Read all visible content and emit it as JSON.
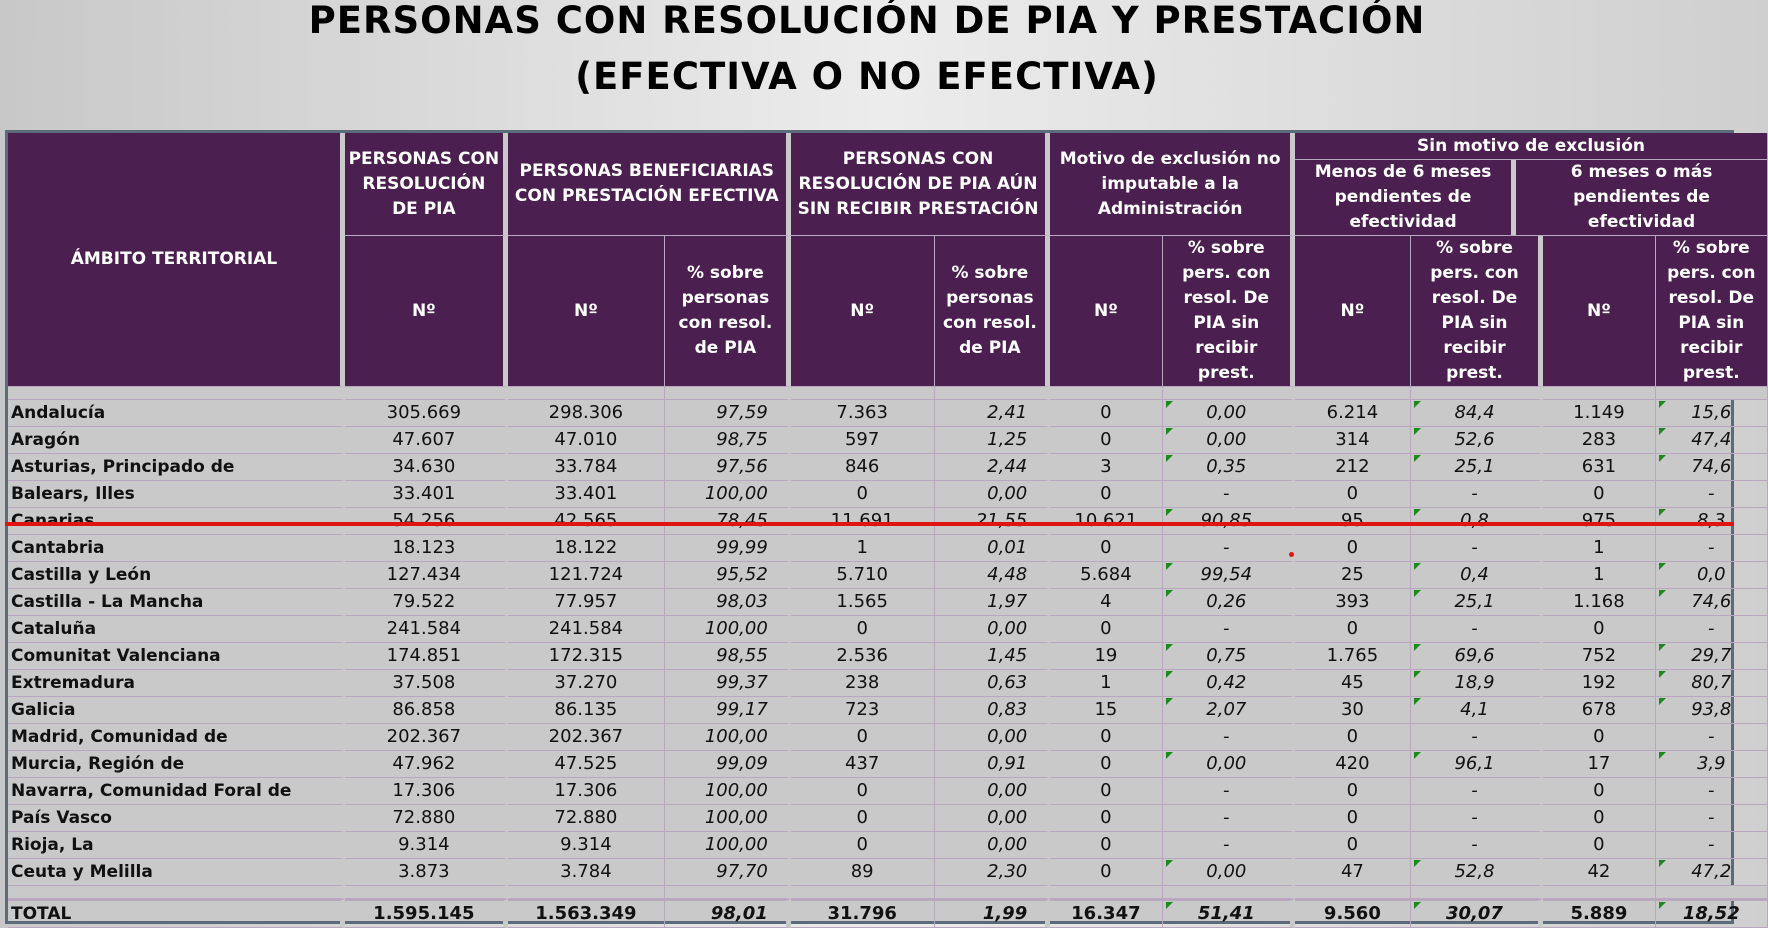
{
  "title": {
    "line1": "PERSONAS CON RESOLUCIÓN DE PIA Y PRESTACIÓN",
    "line2": "(EFECTIVA O NO EFECTIVA)"
  },
  "headers": {
    "ambito": "ÁMBITO TERRITORIAL",
    "personas_pia": "PERSONAS CON RESOLUCIÓN DE PIA",
    "beneficiarias": "PERSONAS BENEFICIARIAS CON PRESTACIÓN EFECTIVA",
    "sin_recibir": "PERSONAS CON RESOLUCIÓN DE PIA AÚN SIN RECIBIR PRESTACIÓN",
    "motivo_exclusion": "Motivo de exclusión no imputable a la Administración",
    "sin_motivo": "Sin motivo de exclusión",
    "menos6": "Menos de 6 meses pendientes de efectividad",
    "mas6": "6 meses o más pendientes de efectividad",
    "num": "Nº",
    "pct_personas": "% sobre personas con resol. de PIA",
    "pct_sin_recibir": "% sobre pers. con resol. De PIA sin recibir prest."
  },
  "rows": [
    {
      "name": "Andalucía",
      "pia": "305.669",
      "ben": "298.306",
      "ben_pct": "97,59",
      "sr": "7.363",
      "sr_pct": "2,41",
      "me": "0",
      "me_pct": "0,00",
      "m6": "6.214",
      "m6_pct": "84,4",
      "p6": "1.149",
      "p6_pct": "15,6"
    },
    {
      "name": "Aragón",
      "pia": "47.607",
      "ben": "47.010",
      "ben_pct": "98,75",
      "sr": "597",
      "sr_pct": "1,25",
      "me": "0",
      "me_pct": "0,00",
      "m6": "314",
      "m6_pct": "52,6",
      "p6": "283",
      "p6_pct": "47,4"
    },
    {
      "name": "Asturias, Principado de",
      "pia": "34.630",
      "ben": "33.784",
      "ben_pct": "97,56",
      "sr": "846",
      "sr_pct": "2,44",
      "me": "3",
      "me_pct": "0,35",
      "m6": "212",
      "m6_pct": "25,1",
      "p6": "631",
      "p6_pct": "74,6"
    },
    {
      "name": "Balears, Illes",
      "pia": "33.401",
      "ben": "33.401",
      "ben_pct": "100,00",
      "sr": "0",
      "sr_pct": "0,00",
      "me": "0",
      "me_pct": "-",
      "m6": "0",
      "m6_pct": "-",
      "p6": "0",
      "p6_pct": "-"
    },
    {
      "name": "Canarias",
      "pia": "54.256",
      "ben": "42.565",
      "ben_pct": "78,45",
      "sr": "11.691",
      "sr_pct": "21,55",
      "me": "10.621",
      "me_pct": "90,85",
      "m6": "95",
      "m6_pct": "0,8",
      "p6": "975",
      "p6_pct": "8,3"
    },
    {
      "name": "Cantabria",
      "pia": "18.123",
      "ben": "18.122",
      "ben_pct": "99,99",
      "sr": "1",
      "sr_pct": "0,01",
      "me": "0",
      "me_pct": "-",
      "m6": "0",
      "m6_pct": "-",
      "p6": "1",
      "p6_pct": "-"
    },
    {
      "name": "Castilla y León",
      "pia": "127.434",
      "ben": "121.724",
      "ben_pct": "95,52",
      "sr": "5.710",
      "sr_pct": "4,48",
      "me": "5.684",
      "me_pct": "99,54",
      "m6": "25",
      "m6_pct": "0,4",
      "p6": "1",
      "p6_pct": "0,0"
    },
    {
      "name": "Castilla - La Mancha",
      "pia": "79.522",
      "ben": "77.957",
      "ben_pct": "98,03",
      "sr": "1.565",
      "sr_pct": "1,97",
      "me": "4",
      "me_pct": "0,26",
      "m6": "393",
      "m6_pct": "25,1",
      "p6": "1.168",
      "p6_pct": "74,6"
    },
    {
      "name": "Cataluña",
      "pia": "241.584",
      "ben": "241.584",
      "ben_pct": "100,00",
      "sr": "0",
      "sr_pct": "0,00",
      "me": "0",
      "me_pct": "-",
      "m6": "0",
      "m6_pct": "-",
      "p6": "0",
      "p6_pct": "-"
    },
    {
      "name": "Comunitat Valenciana",
      "pia": "174.851",
      "ben": "172.315",
      "ben_pct": "98,55",
      "sr": "2.536",
      "sr_pct": "1,45",
      "me": "19",
      "me_pct": "0,75",
      "m6": "1.765",
      "m6_pct": "69,6",
      "p6": "752",
      "p6_pct": "29,7"
    },
    {
      "name": "Extremadura",
      "pia": "37.508",
      "ben": "37.270",
      "ben_pct": "99,37",
      "sr": "238",
      "sr_pct": "0,63",
      "me": "1",
      "me_pct": "0,42",
      "m6": "45",
      "m6_pct": "18,9",
      "p6": "192",
      "p6_pct": "80,7"
    },
    {
      "name": "Galicia",
      "pia": "86.858",
      "ben": "86.135",
      "ben_pct": "99,17",
      "sr": "723",
      "sr_pct": "0,83",
      "me": "15",
      "me_pct": "2,07",
      "m6": "30",
      "m6_pct": "4,1",
      "p6": "678",
      "p6_pct": "93,8"
    },
    {
      "name": "Madrid, Comunidad de",
      "pia": "202.367",
      "ben": "202.367",
      "ben_pct": "100,00",
      "sr": "0",
      "sr_pct": "0,00",
      "me": "0",
      "me_pct": "-",
      "m6": "0",
      "m6_pct": "-",
      "p6": "0",
      "p6_pct": "-"
    },
    {
      "name": "Murcia, Región de",
      "pia": "47.962",
      "ben": "47.525",
      "ben_pct": "99,09",
      "sr": "437",
      "sr_pct": "0,91",
      "me": "0",
      "me_pct": "0,00",
      "m6": "420",
      "m6_pct": "96,1",
      "p6": "17",
      "p6_pct": "3,9"
    },
    {
      "name": "Navarra, Comunidad Foral de",
      "pia": "17.306",
      "ben": "17.306",
      "ben_pct": "100,00",
      "sr": "0",
      "sr_pct": "0,00",
      "me": "0",
      "me_pct": "-",
      "m6": "0",
      "m6_pct": "-",
      "p6": "0",
      "p6_pct": "-"
    },
    {
      "name": "País Vasco",
      "pia": "72.880",
      "ben": "72.880",
      "ben_pct": "100,00",
      "sr": "0",
      "sr_pct": "0,00",
      "me": "0",
      "me_pct": "-",
      "m6": "0",
      "m6_pct": "-",
      "p6": "0",
      "p6_pct": "-"
    },
    {
      "name": "Rioja, La",
      "pia": "9.314",
      "ben": "9.314",
      "ben_pct": "100,00",
      "sr": "0",
      "sr_pct": "0,00",
      "me": "0",
      "me_pct": "-",
      "m6": "0",
      "m6_pct": "-",
      "p6": "0",
      "p6_pct": "-"
    },
    {
      "name": "Ceuta y Melilla",
      "pia": "3.873",
      "ben": "3.784",
      "ben_pct": "97,70",
      "sr": "89",
      "sr_pct": "2,30",
      "me": "0",
      "me_pct": "0,00",
      "m6": "47",
      "m6_pct": "52,8",
      "p6": "42",
      "p6_pct": "47,2"
    }
  ],
  "total": {
    "name": "TOTAL",
    "pia": "1.595.145",
    "ben": "1.563.349",
    "ben_pct": "98,01",
    "sr": "31.796",
    "sr_pct": "1,99",
    "me": "16.347",
    "me_pct": "51,41",
    "m6": "9.560",
    "m6_pct": "30,07",
    "p6": "5.889",
    "p6_pct": "18,52"
  },
  "colors": {
    "header_bg": "#4b1f4f",
    "highlight_line": "#e11414",
    "comment_marker": "#1a8a1a"
  }
}
